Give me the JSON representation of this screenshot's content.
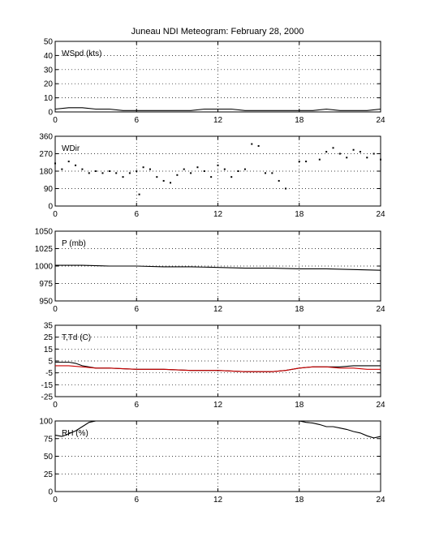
{
  "title": "Juneau NDI Meteogram:  February 28, 2000",
  "chart_data": [
    {
      "type": "line",
      "panel_label": "WSpd (kts)",
      "xlim": [
        0,
        24
      ],
      "xticks": [
        0,
        6,
        12,
        18,
        24
      ],
      "ylim": [
        0,
        50
      ],
      "yticks": [
        0,
        10,
        20,
        30,
        40,
        50
      ],
      "grid": true,
      "series": [
        {
          "color": "#000000",
          "x": [
            0,
            1,
            2,
            3,
            4,
            5,
            6,
            7,
            8,
            9,
            10,
            11,
            12,
            13,
            14,
            15,
            16,
            17,
            18,
            19,
            20,
            21,
            22,
            23,
            24
          ],
          "y": [
            2,
            3,
            3,
            2,
            2,
            1,
            1,
            1,
            1,
            1,
            1,
            2,
            2,
            2,
            1,
            1,
            1,
            1,
            1,
            1,
            2,
            1,
            1,
            1,
            2
          ]
        }
      ]
    },
    {
      "type": "scatter",
      "panel_label": "WDir",
      "xlim": [
        0,
        24
      ],
      "xticks": [
        0,
        6,
        12,
        18,
        24
      ],
      "ylim": [
        0,
        360
      ],
      "yticks": [
        0,
        90,
        180,
        270,
        360
      ],
      "grid": true,
      "series": [
        {
          "color": "#000000",
          "x": [
            0,
            0.5,
            1,
            1.5,
            2,
            2.5,
            3,
            3.5,
            4,
            4.5,
            5,
            5.5,
            6,
            6.2,
            6.5,
            7,
            7.5,
            8,
            8.5,
            9,
            9.5,
            10,
            10.5,
            11,
            11.5,
            12,
            12.5,
            13,
            13.5,
            14,
            14.5,
            15,
            15.5,
            16,
            16.5,
            17,
            18,
            18.5,
            19.5,
            20,
            20.5,
            21,
            21.5,
            22,
            22.5,
            23,
            23.5,
            24
          ],
          "y": [
            220,
            190,
            230,
            210,
            190,
            170,
            180,
            170,
            180,
            170,
            150,
            170,
            180,
            60,
            200,
            190,
            150,
            130,
            120,
            160,
            190,
            170,
            200,
            180,
            150,
            210,
            190,
            150,
            180,
            190,
            320,
            310,
            170,
            170,
            130,
            90,
            230,
            230,
            240,
            280,
            300,
            270,
            250,
            290,
            280,
            250,
            270,
            240
          ]
        }
      ]
    },
    {
      "type": "line",
      "panel_label": "P (mb)",
      "xlim": [
        0,
        24
      ],
      "xticks": [
        0,
        6,
        12,
        18,
        24
      ],
      "ylim": [
        950,
        1050
      ],
      "yticks": [
        950,
        975,
        1000,
        1025,
        1050
      ],
      "grid": true,
      "series": [
        {
          "color": "#000000",
          "x": [
            0,
            2,
            4,
            6,
            8,
            10,
            12,
            14,
            16,
            18,
            20,
            22,
            24
          ],
          "y": [
            1001,
            1001,
            1000,
            1000,
            999,
            999,
            998,
            997,
            997,
            996,
            996,
            995,
            994
          ]
        }
      ]
    },
    {
      "type": "line",
      "panel_label": "T,Td (C)",
      "xlim": [
        0,
        24
      ],
      "xticks": [
        0,
        6,
        12,
        18,
        24
      ],
      "ylim": [
        -25,
        35
      ],
      "yticks": [
        -25,
        -15,
        -5,
        5,
        15,
        25,
        35
      ],
      "grid": true,
      "series": [
        {
          "color": "#000000",
          "x": [
            0,
            1,
            1.5,
            2,
            3,
            4,
            6,
            8,
            10,
            12,
            14,
            16,
            17,
            18,
            19,
            20,
            21,
            22,
            23,
            24
          ],
          "y": [
            4,
            4,
            3,
            1,
            -1,
            -1,
            -2,
            -2,
            -3,
            -3,
            -4,
            -4,
            -3,
            -1,
            0,
            0,
            0,
            1,
            1,
            1
          ]
        },
        {
          "color": "#cc0000",
          "x": [
            0,
            1,
            2,
            3,
            4,
            6,
            8,
            10,
            12,
            14,
            16,
            17,
            18,
            19,
            20,
            21,
            22,
            23,
            24
          ],
          "y": [
            1,
            1,
            0,
            -1,
            -1,
            -2,
            -2,
            -3,
            -3,
            -4,
            -4,
            -3,
            -1,
            0,
            0,
            -1,
            -1,
            -2,
            -2
          ]
        }
      ]
    },
    {
      "type": "line",
      "panel_label": "RH (%)",
      "xlim": [
        0,
        24
      ],
      "xticks": [
        0,
        6,
        12,
        18,
        24
      ],
      "ylim": [
        0,
        100
      ],
      "yticks": [
        0,
        25,
        50,
        75,
        100
      ],
      "grid": true,
      "series": [
        {
          "color": "#000000",
          "x": [
            0,
            0.5,
            1,
            1.5,
            2,
            2.5,
            3,
            6,
            12,
            14,
            17.8,
            18,
            18.5,
            19,
            19.5,
            20,
            20.5,
            21,
            21.5,
            22,
            22.5,
            23,
            23.5,
            24
          ],
          "y": [
            80,
            78,
            82,
            86,
            92,
            98,
            100,
            100,
            100,
            100,
            100,
            100,
            98,
            97,
            95,
            92,
            92,
            90,
            88,
            85,
            83,
            79,
            76,
            78
          ]
        }
      ]
    }
  ]
}
